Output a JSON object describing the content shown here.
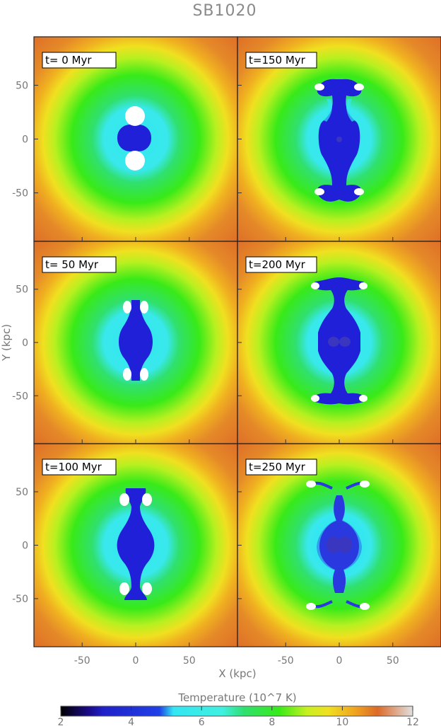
{
  "chart_data": {
    "type": "heatmap",
    "title": "SB1020",
    "xlabel": "X (kpc)",
    "ylabel": "Y (kpc)",
    "xlim": [
      -95,
      95
    ],
    "ylim": [
      -95,
      95
    ],
    "x_ticks": [
      -50,
      0,
      50
    ],
    "y_ticks": [
      50,
      0,
      -50
    ],
    "panels": [
      {
        "label": "t=   0 Myr",
        "time_myr": 0
      },
      {
        "label": "t=150 Myr",
        "time_myr": 150
      },
      {
        "label": "t= 50 Myr",
        "time_myr": 50
      },
      {
        "label": "t=200 Myr",
        "time_myr": 200
      },
      {
        "label": "t=100 Myr",
        "time_myr": 100
      },
      {
        "label": "t=250 Myr",
        "time_myr": 250
      }
    ],
    "colorbar": {
      "label": "Temperature (10^7 K)",
      "range": [
        2,
        12
      ],
      "ticks": [
        2,
        4,
        6,
        8,
        10,
        12
      ],
      "stops": [
        {
          "value": 2.0,
          "color": "#000000"
        },
        {
          "value": 2.8,
          "color": "#1a0a8a"
        },
        {
          "value": 3.2,
          "color": "#2020c8"
        },
        {
          "value": 4.8,
          "color": "#2040e8"
        },
        {
          "value": 5.2,
          "color": "#33e6f2"
        },
        {
          "value": 6.6,
          "color": "#40f0e0"
        },
        {
          "value": 7.2,
          "color": "#30e070"
        },
        {
          "value": 8.2,
          "color": "#38ea18"
        },
        {
          "value": 9.0,
          "color": "#c8f020"
        },
        {
          "value": 9.6,
          "color": "#f0e020"
        },
        {
          "value": 10.4,
          "color": "#f0a020"
        },
        {
          "value": 11.0,
          "color": "#dc6a28"
        },
        {
          "value": 12.0,
          "color": "#e0e0e0"
        }
      ]
    }
  }
}
